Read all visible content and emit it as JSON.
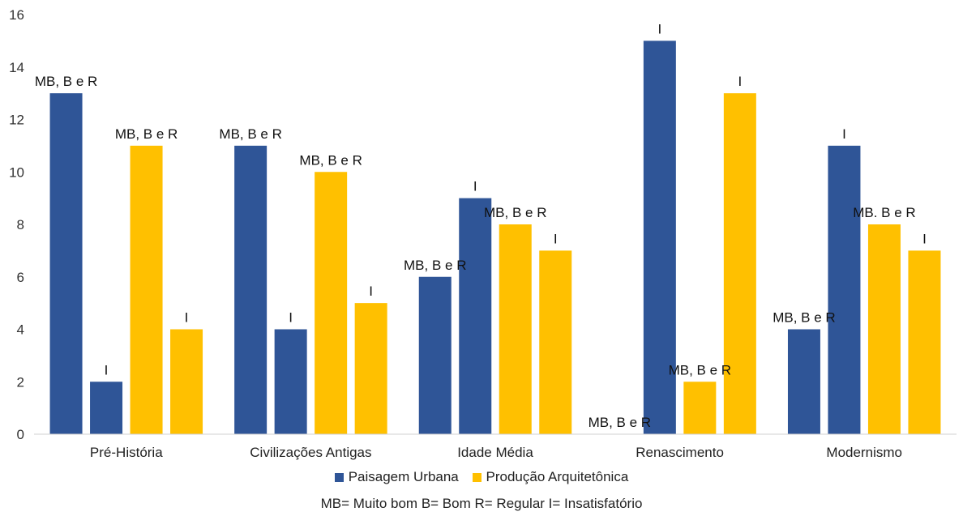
{
  "chart_data": {
    "type": "bar",
    "categories": [
      "Pré-História",
      "Civilizações Antigas",
      "Idade Média",
      "Renascimento",
      "Modernismo"
    ],
    "ylim": [
      0,
      16
    ],
    "yticks": [
      0,
      2,
      4,
      6,
      8,
      10,
      12,
      14,
      16
    ],
    "grid": false,
    "legend_position": "bottom",
    "bars_per_category": [
      {
        "series": "Paisagem Urbana",
        "group": "MB, B e R"
      },
      {
        "series": "Paisagem Urbana",
        "group": "I"
      },
      {
        "series": "Produção Arquitetônica",
        "group": "MB, B e R"
      },
      {
        "series": "Produção Arquitetônica",
        "group": "I"
      }
    ],
    "values": [
      [
        13,
        2,
        11,
        4
      ],
      [
        11,
        4,
        10,
        5
      ],
      [
        6,
        9,
        8,
        7
      ],
      [
        0,
        15,
        2,
        13
      ],
      [
        4,
        11,
        8,
        7
      ]
    ],
    "labels": [
      [
        "MB, B e R",
        "I",
        "MB, B e R",
        "I"
      ],
      [
        "MB, B e R",
        "I",
        "MB, B e R",
        "I"
      ],
      [
        "MB, B e R",
        "I",
        "MB, B e R",
        "I"
      ],
      [
        "MB, B e R",
        "I",
        "MB, B e R",
        "I"
      ],
      [
        "MB, B e R",
        "I",
        "MB. B e R",
        "I"
      ]
    ],
    "series": [
      {
        "name": "Paisagem Urbana",
        "color": "#2F5597"
      },
      {
        "name": "Produção Arquitetônica",
        "color": "#FFC000"
      }
    ],
    "footnote": "MB= Muito bom  B= Bom  R= Regular  I= Insatisfatório"
  }
}
